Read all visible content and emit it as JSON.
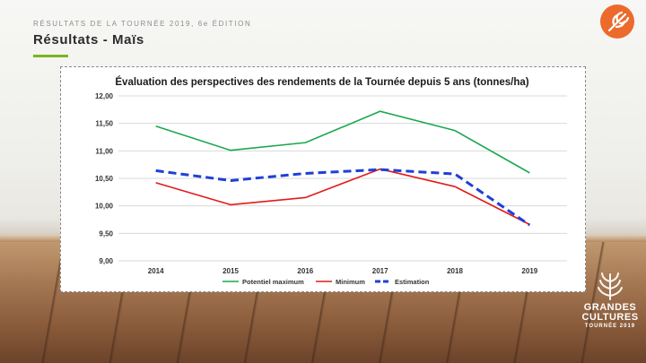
{
  "header": {
    "supertitle": "RÉSULTATS DE LA TOURNÉE 2019, 6e ÉDITION",
    "title": "Résultats - Maïs",
    "accent_color": "#7ab51d"
  },
  "logo": {
    "icon": "wheat-ear-icon",
    "color": "#ec6a2c"
  },
  "watermark": {
    "line1": "GRANDES",
    "line2": "CULTURES",
    "line3": "TOURNÉE 2019",
    "icon": "wheat-ear-icon"
  },
  "chart_data": {
    "type": "line",
    "title": "Évaluation des perspectives des rendements de la Tournée depuis 5 ans (tonnes/ha)",
    "xlabel": "",
    "ylabel": "",
    "x": [
      "2014",
      "2015",
      "2016",
      "2017",
      "2018",
      "2019"
    ],
    "ylim": [
      9.0,
      12.0
    ],
    "yticks": [
      "9,00",
      "9,50",
      "10,00",
      "10,50",
      "11,00",
      "11,50",
      "12,00"
    ],
    "grid": true,
    "legend_position": "bottom",
    "series": [
      {
        "name": "Potentiel maximum",
        "color": "#1ba84f",
        "dash": "solid",
        "values": [
          11.45,
          11.01,
          11.15,
          11.72,
          11.37,
          10.6
        ]
      },
      {
        "name": "Minimum",
        "color": "#e21b1b",
        "dash": "solid",
        "values": [
          10.42,
          10.02,
          10.15,
          10.67,
          10.35,
          9.66
        ]
      },
      {
        "name": "Estimation",
        "color": "#1f3fd6",
        "dash": "dashed",
        "values": [
          10.64,
          10.46,
          10.59,
          10.66,
          10.58,
          9.65
        ]
      }
    ]
  }
}
